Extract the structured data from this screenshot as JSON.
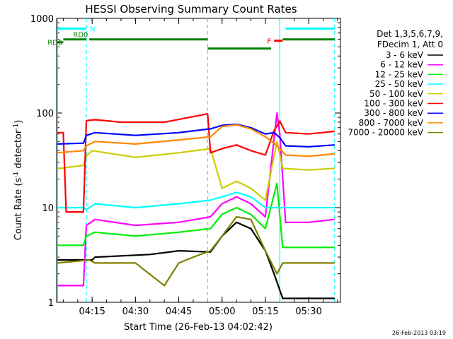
{
  "chart_data": {
    "type": "line",
    "title": "HESSI Observing Summary Count Rates",
    "xlabel": "Start Time (26-Feb-13 04:02:42)",
    "ylabel": "Count Rate (s⁻¹ detector⁻¹)",
    "ylabel_main": "Count Rate (s",
    "ylabel_sup1": "-1",
    "ylabel_mid": " detector",
    "ylabel_sup2": "-1",
    "ylabel_end": ")",
    "yscale": "log",
    "ylim": [
      1,
      1000
    ],
    "xlim": [
      "04:02:42",
      "05:41:00"
    ],
    "x_ticks": [
      "04:15",
      "04:30",
      "04:45",
      "05:00",
      "05:15",
      "05:30"
    ],
    "y_ticks": [
      "1",
      "10",
      "100",
      "1000"
    ],
    "timestamp": "26-Feb-2013 03:19",
    "legend_header": [
      "Det 1,3,5,6,7,9,",
      "FDecim 1, Att 0"
    ],
    "legend_placement": "right, outside plot",
    "series": [
      {
        "name": "3 - 6 keV",
        "color": "#000000",
        "x": [
          "04:03",
          "04:15",
          "04:16",
          "04:35",
          "04:45",
          "04:56",
          "05:00",
          "05:05",
          "05:10",
          "05:15",
          "05:18",
          "05:21",
          "05:30",
          "05:39"
        ],
        "y": [
          2.8,
          2.8,
          3.0,
          3.2,
          3.5,
          3.4,
          5.0,
          7.0,
          6.0,
          3.5,
          2.0,
          1.1,
          1.1,
          1.1
        ]
      },
      {
        "name": "6 - 12 keV",
        "color": "#ff00ff",
        "x": [
          "04:03",
          "04:06",
          "04:12",
          "04:13",
          "04:16",
          "04:30",
          "04:45",
          "04:56",
          "05:00",
          "05:05",
          "05:10",
          "05:15",
          "05:19",
          "05:20",
          "05:22",
          "05:30",
          "05:39"
        ],
        "y": [
          1.5,
          1.5,
          1.5,
          6.5,
          7.5,
          6.5,
          7.0,
          8.0,
          11,
          13,
          11,
          8.0,
          100,
          60,
          7.0,
          7.0,
          7.5
        ]
      },
      {
        "name": "12 - 25 keV",
        "color": "#00ee00",
        "x": [
          "04:03",
          "04:12",
          "04:13",
          "04:16",
          "04:30",
          "04:45",
          "04:56",
          "05:00",
          "05:05",
          "05:10",
          "05:15",
          "05:19",
          "05:21",
          "05:30",
          "05:39"
        ],
        "y": [
          4.0,
          4.0,
          5.0,
          5.5,
          5.0,
          5.5,
          6.0,
          8.5,
          10,
          8.5,
          6.0,
          18,
          3.8,
          3.8,
          3.8
        ]
      },
      {
        "name": "25 - 50 keV",
        "color": "#00ffff",
        "x": [
          "04:03",
          "04:12",
          "04:13",
          "04:16",
          "04:30",
          "04:45",
          "04:56",
          "05:00",
          "05:05",
          "05:10",
          "05:15",
          "05:19",
          "05:21",
          "05:30",
          "05:39"
        ],
        "y": [
          10,
          10,
          9.5,
          11,
          10,
          11,
          12,
          13,
          14.5,
          13,
          10,
          10,
          10,
          10,
          10
        ]
      },
      {
        "name": "50 - 100 keV",
        "color": "#cccc00",
        "x": [
          "04:03",
          "04:04",
          "04:12",
          "04:13",
          "04:15",
          "04:30",
          "04:45",
          "04:56",
          "05:00",
          "05:05",
          "05:10",
          "05:15",
          "05:19",
          "05:21",
          "05:30",
          "05:39"
        ],
        "y": [
          26,
          26,
          28,
          35,
          40,
          34,
          38,
          42,
          16,
          19,
          16,
          12,
          50,
          26,
          25,
          26
        ]
      },
      {
        "name": "100 - 300 keV",
        "color": "#ff0000",
        "x": [
          "04:03",
          "04:05",
          "04:06",
          "04:12",
          "04:13",
          "04:16",
          "04:25",
          "04:40",
          "04:55",
          "04:56",
          "05:00",
          "05:05",
          "05:10",
          "05:15",
          "05:18",
          "05:20",
          "05:22",
          "05:30",
          "05:39"
        ],
        "y": [
          62,
          62,
          9.0,
          9.0,
          83,
          85,
          80,
          80,
          98,
          38,
          42,
          46,
          40,
          36,
          65,
          82,
          62,
          60,
          64
        ]
      },
      {
        "name": "300 - 800 keV",
        "color": "#0000ff",
        "x": [
          "04:03",
          "04:12",
          "04:13",
          "04:16",
          "04:30",
          "04:45",
          "04:56",
          "05:00",
          "05:05",
          "05:10",
          "05:15",
          "05:18",
          "05:20",
          "05:22",
          "05:30",
          "05:39"
        ],
        "y": [
          47,
          48,
          58,
          62,
          58,
          62,
          68,
          74,
          76,
          70,
          60,
          62,
          55,
          45,
          44,
          46
        ]
      },
      {
        "name": "800 - 7000 keV",
        "color": "#ff8800",
        "x": [
          "04:03",
          "04:12",
          "04:13",
          "04:16",
          "04:30",
          "04:45",
          "04:56",
          "05:00",
          "05:05",
          "05:10",
          "05:15",
          "05:18",
          "05:20",
          "05:22",
          "05:30",
          "05:39"
        ],
        "y": [
          38,
          40,
          45,
          50,
          47,
          52,
          56,
          72,
          75,
          68,
          56,
          48,
          42,
          36,
          35,
          37
        ]
      },
      {
        "name": "7000 - 20000 keV",
        "color": "#808000",
        "x": [
          "04:03",
          "04:14",
          "04:16",
          "04:30",
          "04:40",
          "04:45",
          "04:50",
          "04:56",
          "05:00",
          "05:05",
          "05:10",
          "05:15",
          "05:19",
          "05:21",
          "05:30",
          "05:39"
        ],
        "y": [
          2.6,
          2.8,
          2.6,
          2.6,
          1.5,
          2.6,
          3.0,
          3.5,
          5.0,
          8.0,
          7.5,
          3.5,
          2.0,
          2.6,
          2.6,
          2.6
        ]
      }
    ],
    "segments": [
      {
        "label": "N",
        "color": "#00ffff",
        "y": 780,
        "ranges": [
          [
            "04:03",
            "04:13"
          ],
          [
            "05:22",
            "05:39"
          ]
        ]
      },
      {
        "label": "F",
        "color": "#ff0000",
        "y": 580,
        "ranges": [
          [
            "05:18",
            "05:21"
          ]
        ]
      },
      {
        "label": "RD0",
        "color": "#008000",
        "y": 600,
        "ranges": [
          [
            "04:05",
            "04:13"
          ],
          [
            "04:14",
            "04:55"
          ],
          [
            "05:21",
            "05:39"
          ]
        ]
      },
      {
        "label": "",
        "color": "#008000",
        "y": 480,
        "ranges": [
          [
            "04:55",
            "05:17"
          ]
        ]
      },
      {
        "label": "RD6",
        "color": "#008000",
        "y": 560,
        "ranges": [
          [
            "04:03",
            "04:05"
          ]
        ]
      }
    ],
    "vlines": [
      {
        "t": "04:03",
        "color": "#00ffff",
        "style": "solid"
      },
      {
        "t": "04:13",
        "color": "#00ffff",
        "style": "dashed"
      },
      {
        "t": "04:55",
        "color": "#00ffff",
        "style": "dashed"
      },
      {
        "t": "05:20",
        "color": "#00ffff",
        "style": "solid"
      },
      {
        "t": "05:39",
        "color": "#00ffff",
        "style": "dashed"
      }
    ]
  }
}
